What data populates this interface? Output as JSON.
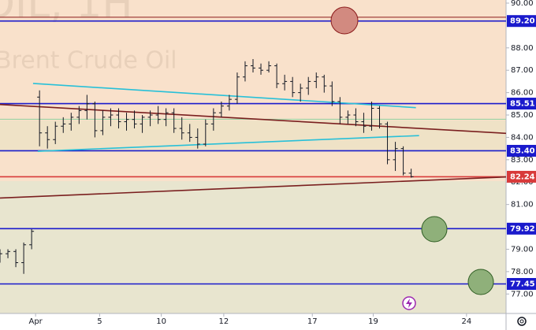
{
  "chart_data": {
    "type": "candlestick",
    "title": "OIL, 1H",
    "subtitle": "Brent Crude Oil",
    "color": "#131722",
    "x": [
      0,
      0.5,
      1,
      1.5,
      2,
      2.5,
      3,
      3.5,
      4,
      4.5,
      5,
      5.5,
      6,
      6.5,
      7,
      7.5,
      8,
      8.5,
      9,
      9.5,
      10,
      10.5,
      11,
      11.5,
      12,
      12.5,
      13,
      13.5,
      14,
      14.5,
      15,
      15.5,
      16,
      16.5,
      17,
      17.5,
      18,
      18.5,
      19,
      19.5,
      20,
      20.5,
      21,
      21.5,
      22,
      22.5,
      23,
      23.5,
      24,
      24.5,
      25,
      25.5,
      26
    ],
    "open": [
      78.7,
      78.8,
      78.9,
      78.4,
      79.2,
      85.8,
      84.2,
      83.9,
      84.5,
      84.6,
      84.9,
      85.2,
      85.5,
      84.3,
      84.9,
      85.0,
      84.7,
      84.8,
      84.6,
      84.9,
      85.0,
      84.8,
      85.1,
      84.4,
      84.2,
      84.0,
      83.7,
      84.6,
      85.1,
      85.4,
      85.7,
      86.7,
      87.2,
      87.1,
      87.0,
      87.2,
      86.4,
      86.5,
      86.0,
      86.2,
      86.5,
      86.7,
      86.3,
      85.6,
      84.9,
      85.0,
      84.7,
      84.5,
      85.3,
      84.6,
      83.0,
      83.5,
      82.4
    ],
    "high": [
      79.0,
      79.0,
      79.0,
      79.3,
      79.9,
      86.1,
      84.5,
      84.7,
      84.9,
      85.1,
      85.4,
      85.9,
      85.6,
      85.2,
      85.3,
      85.3,
      85.1,
      85.2,
      85.0,
      85.2,
      85.4,
      85.3,
      85.3,
      84.9,
      84.6,
      84.4,
      84.8,
      85.3,
      85.6,
      85.9,
      86.9,
      87.4,
      87.5,
      87.3,
      87.4,
      87.3,
      86.8,
      86.7,
      86.4,
      86.7,
      86.9,
      86.8,
      86.5,
      85.8,
      85.2,
      85.3,
      85.1,
      85.6,
      85.4,
      84.7,
      83.8,
      83.6,
      82.6
    ],
    "low": [
      78.4,
      78.6,
      78.2,
      77.9,
      79.0,
      83.6,
      83.5,
      83.7,
      84.2,
      84.3,
      84.6,
      84.8,
      84.0,
      84.1,
      84.5,
      84.4,
      84.3,
      84.4,
      84.2,
      84.5,
      84.6,
      84.5,
      84.2,
      83.9,
      83.8,
      83.5,
      83.6,
      84.3,
      84.9,
      85.2,
      85.5,
      86.5,
      86.9,
      86.8,
      86.9,
      86.2,
      86.1,
      85.8,
      85.6,
      85.9,
      86.2,
      86.0,
      85.4,
      84.6,
      84.6,
      84.5,
      84.2,
      84.3,
      84.4,
      82.8,
      82.5,
      82.3,
      82.2
    ],
    "close": [
      78.8,
      78.9,
      78.4,
      79.2,
      79.8,
      84.2,
      83.9,
      84.5,
      84.6,
      84.9,
      85.2,
      85.5,
      84.3,
      84.9,
      85.0,
      84.7,
      84.8,
      84.6,
      84.9,
      85.0,
      84.8,
      85.1,
      84.4,
      84.2,
      84.0,
      83.7,
      84.6,
      85.1,
      85.4,
      85.7,
      86.7,
      87.2,
      87.1,
      87.0,
      87.2,
      86.4,
      86.5,
      86.0,
      86.2,
      86.5,
      86.7,
      86.3,
      85.6,
      84.9,
      85.0,
      84.7,
      84.5,
      85.3,
      84.6,
      83.0,
      83.5,
      82.4,
      82.24
    ],
    "xlim": [
      0,
      32
    ],
    "ylim": [
      76.13,
      90.14
    ],
    "xticks": [
      {
        "value": 2.25,
        "label": "Apr"
      },
      {
        "value": 6.3,
        "label": "5"
      },
      {
        "value": 10.2,
        "label": "10"
      },
      {
        "value": 14.15,
        "label": "12"
      },
      {
        "value": 19.75,
        "label": "17"
      },
      {
        "value": 23.6,
        "label": "19"
      },
      {
        "value": 29.5,
        "label": "24"
      }
    ],
    "yticks": [
      {
        "value": 77,
        "label": "77.00"
      },
      {
        "value": 78,
        "label": "78.00"
      },
      {
        "value": 79,
        "label": "79.00"
      },
      {
        "value": 81,
        "label": "81.00"
      },
      {
        "value": 82,
        "label": "82.00"
      },
      {
        "value": 83,
        "label": "83.00"
      },
      {
        "value": 84,
        "label": "84.00"
      },
      {
        "value": 85,
        "label": "85.00"
      },
      {
        "value": 86,
        "label": "86.00"
      },
      {
        "value": 87,
        "label": "87.00"
      },
      {
        "value": 88,
        "label": "88.00"
      },
      {
        "value": 90,
        "label": "90.00"
      }
    ],
    "levels": [
      {
        "value": 89.37,
        "color": "#8b1a1a"
      },
      {
        "value": 89.2,
        "label": "89.20",
        "color": "#1a1acc"
      },
      {
        "value": 85.51,
        "label": "85.51",
        "color": "#1a1acc"
      },
      {
        "value": 84.81,
        "color": "#8fd19e"
      },
      {
        "value": 83.4,
        "label": "83.40",
        "color": "#1a1acc"
      },
      {
        "value": 82.24,
        "label": "82.24",
        "color": "#d83a3a"
      },
      {
        "value": 79.92,
        "label": "79.92",
        "color": "#1a1acc"
      },
      {
        "value": 77.45,
        "label": "77.45",
        "color": "#1a1acc"
      }
    ],
    "trendlines": [
      {
        "color": "#7a1f1f",
        "x": [
          0,
          32
        ],
        "y": [
          85.47,
          84.18
        ]
      },
      {
        "color": "#7a1f1f",
        "x": [
          0,
          32
        ],
        "y": [
          81.29,
          82.23
        ]
      },
      {
        "color": "#28c0d8",
        "x": [
          2.09,
          26.3
        ],
        "y": [
          86.41,
          85.33
        ]
      },
      {
        "color": "#28c0d8",
        "x": [
          2.39,
          26.5
        ],
        "y": [
          83.38,
          84.08
        ]
      }
    ]
  }
}
